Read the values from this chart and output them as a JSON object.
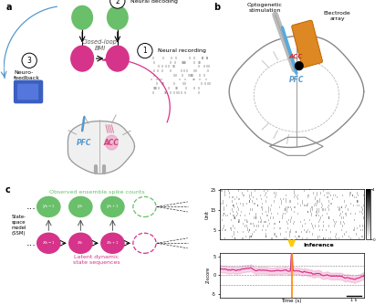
{
  "panel_a": {
    "node_color_green": "#6abf6a",
    "node_color_magenta": "#d6338a",
    "arrow_color_blue": "#5599cc",
    "arrow_color_magenta": "#d6338a",
    "label_neural_decoding": "Neural decoding",
    "label_neural_recording": "Neural recording",
    "label_neurofeedback": "Neuro-\nfeedback",
    "label_closed_loop": "Closed-loop\nBMI",
    "label_pfc": "PFC",
    "label_acc": "ACC"
  },
  "panel_b": {
    "label_optogenetic": "Optogenetic\nstimulation",
    "label_electrode": "Electrode\narray",
    "label_pfc": "PFC",
    "label_acc": "ACC",
    "color_probe_gray": "#bbbbbb",
    "color_probe_blue": "#5599cc",
    "color_electrode": "#dd8822",
    "color_pfc_text": "#5599cc",
    "color_acc_text": "#cc3333"
  },
  "panel_c": {
    "label_ssm": "State-\nspace\nmodel\n(SSM)",
    "label_observed": "Observed ensemble spike counts",
    "label_latent": "Latent dynamic\nstate sequences",
    "label_inference": "Inference",
    "node_color_green": "#6abf6a",
    "node_color_magenta": "#d6338a",
    "ylabel_raster": "Unit",
    "ylabel_zscore": "Z-score",
    "xlabel_zscore": "Time (s)"
  },
  "background_color": "#ffffff"
}
